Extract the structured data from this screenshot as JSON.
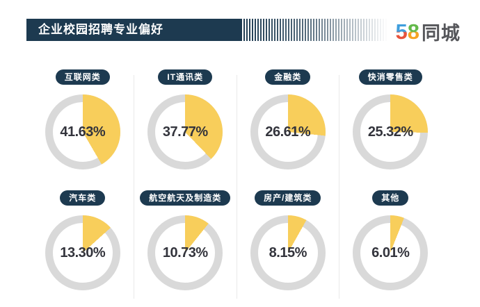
{
  "header": {
    "title": "企业校园招聘专业偏好",
    "bar_color": "#1d3a50",
    "logo": {
      "digit_5": "5",
      "digit_8": "8",
      "suffix": "同城",
      "color_5_top": "#3f9edd",
      "color_5_bottom": "#e8533c",
      "color_8_top": "#63b94a",
      "color_8_bottom": "#f6a322",
      "suffix_color": "#55565a"
    }
  },
  "chart_data": {
    "type": "pie",
    "title": "企业校园招聘专业偏好",
    "subtitle": "",
    "unit": "%",
    "categories": [
      "互联网类",
      "IT通讯类",
      "金融类",
      "快消零售类",
      "汽车类",
      "航空航天及制造类",
      "房产/建筑类",
      "其他"
    ],
    "values": [
      41.63,
      37.77,
      26.61,
      25.32,
      13.3,
      10.73,
      8.15,
      6.01
    ],
    "value_labels": [
      "41.63%",
      "37.77%",
      "26.61%",
      "25.32%",
      "13.30%",
      "10.73%",
      "8.15%",
      "6.01%"
    ],
    "layout": "2 rows x 4 columns of donut pies, wedge starts at 12 o'clock clockwise",
    "colors": {
      "wedge": "#f8ce5b",
      "ring": "#d9d9d9",
      "label_pill": "#1d3a50",
      "value_text": "#33343c"
    }
  }
}
